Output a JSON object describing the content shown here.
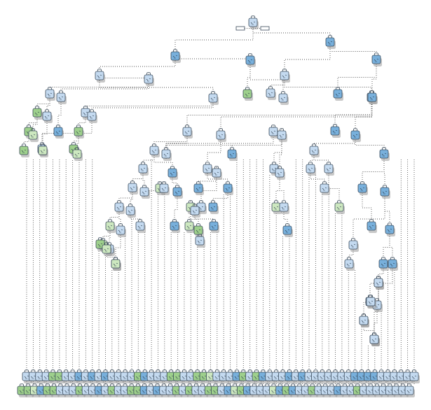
{
  "diagram": {
    "type": "decision-tree",
    "colors": {
      "blue": "#78b0dc",
      "light": "#c4daf0",
      "green": "#9ed08c",
      "palegreen": "#cde8c0",
      "link": "#555555"
    },
    "icon": "bag-node-icon",
    "nodes": [
      {
        "id": "n0",
        "c": "light"
      },
      {
        "id": "n1",
        "parent": "n0",
        "c": "blue"
      },
      {
        "id": "n2",
        "parent": "n0",
        "c": "blue"
      },
      {
        "id": "n3",
        "parent": "n1",
        "c": "light"
      },
      {
        "id": "n4",
        "parent": "n1",
        "c": "blue"
      },
      {
        "id": "n5",
        "parent": "n2",
        "c": "light"
      },
      {
        "id": "n6",
        "parent": "n2",
        "c": "blue"
      },
      {
        "id": "n7",
        "parent": "n3",
        "c": "light"
      },
      {
        "id": "n8",
        "parent": "n3",
        "c": "light"
      },
      {
        "id": "n9",
        "parent": "n4",
        "c": "green"
      },
      {
        "id": "n10",
        "parent": "n4",
        "c": "light"
      },
      {
        "id": "n11",
        "parent": "n5",
        "c": "light"
      },
      {
        "id": "n12",
        "parent": "n5",
        "c": "light"
      },
      {
        "id": "n13",
        "parent": "n6",
        "c": "blue"
      },
      {
        "id": "n14",
        "parent": "n6",
        "c": "blue"
      },
      {
        "id": "n15",
        "parent": "n7",
        "c": "light"
      },
      {
        "id": "n16",
        "parent": "n7",
        "c": "light"
      },
      {
        "id": "n17",
        "parent": "n8",
        "c": "light"
      },
      {
        "id": "n18",
        "parent": "n8",
        "c": "light"
      },
      {
        "id": "n19",
        "parent": "n12",
        "c": "light"
      },
      {
        "id": "n20",
        "parent": "n12",
        "c": "light"
      },
      {
        "id": "n21",
        "parent": "n15",
        "c": "green"
      },
      {
        "id": "n22",
        "parent": "n15",
        "c": "light"
      },
      {
        "id": "n23",
        "parent": "n16",
        "c": "blue"
      },
      {
        "id": "n24",
        "parent": "n17",
        "c": "green"
      },
      {
        "id": "n25",
        "parent": "n18",
        "c": "light"
      },
      {
        "id": "n26",
        "parent": "n19",
        "c": "light"
      },
      {
        "id": "n27",
        "parent": "n19",
        "c": "light"
      },
      {
        "id": "n28",
        "parent": "n20",
        "c": "blue"
      },
      {
        "id": "n29",
        "parent": "n20",
        "c": "light"
      },
      {
        "id": "n30",
        "parent": "n14",
        "c": "blue"
      },
      {
        "id": "n31",
        "parent": "n14",
        "c": "blue"
      },
      {
        "id": "n32",
        "parent": "n21",
        "c": "green"
      },
      {
        "id": "n33",
        "parent": "n21",
        "c": "palegreen"
      },
      {
        "id": "n34",
        "parent": "n22",
        "c": "palegreen"
      },
      {
        "id": "n35",
        "parent": "n24",
        "c": "green"
      },
      {
        "id": "n36",
        "parent": "n24",
        "c": "palegreen"
      },
      {
        "id": "n37",
        "parent": "n26",
        "c": "light"
      },
      {
        "id": "n38",
        "parent": "n26",
        "c": "blue"
      },
      {
        "id": "n39",
        "parent": "n27",
        "c": "light"
      },
      {
        "id": "n40",
        "parent": "n27",
        "c": "light"
      },
      {
        "id": "n41",
        "parent": "n29",
        "c": "light"
      },
      {
        "id": "n42",
        "parent": "n29",
        "c": "blue"
      },
      {
        "id": "n43",
        "parent": "n31",
        "c": "light"
      },
      {
        "id": "n44",
        "parent": "n31",
        "c": "blue"
      },
      {
        "id": "n45",
        "parent": "n32",
        "c": "green"
      },
      {
        "id": "n46",
        "parent": "n37",
        "c": "light"
      },
      {
        "id": "n47",
        "parent": "n37",
        "c": "light"
      },
      {
        "id": "n48",
        "parent": "n38",
        "c": "blue"
      },
      {
        "id": "n49",
        "parent": "n40",
        "c": "light"
      },
      {
        "id": "n50",
        "parent": "n40",
        "c": "light"
      },
      {
        "id": "n51",
        "parent": "n41",
        "c": "blue"
      },
      {
        "id": "n52",
        "parent": "n41",
        "c": "light"
      },
      {
        "id": "n53",
        "parent": "n42",
        "c": "blue"
      },
      {
        "id": "n54",
        "parent": "n43",
        "c": "light"
      },
      {
        "id": "n55",
        "parent": "n43",
        "c": "light"
      },
      {
        "id": "n56",
        "parent": "n44",
        "c": "blue"
      },
      {
        "id": "n57",
        "parent": "n44",
        "c": "blue"
      },
      {
        "id": "n58",
        "parent": "n46",
        "c": "light"
      },
      {
        "id": "n59",
        "parent": "n46",
        "c": "light"
      },
      {
        "id": "n60",
        "parent": "n47",
        "c": "palegreen"
      },
      {
        "id": "n61",
        "parent": "n47",
        "c": "light"
      },
      {
        "id": "n62",
        "parent": "n48",
        "c": "blue"
      },
      {
        "id": "n63",
        "parent": "n50",
        "c": "palegreen"
      },
      {
        "id": "n64",
        "parent": "n50",
        "c": "light"
      },
      {
        "id": "n65",
        "parent": "n52",
        "c": "palegreen"
      },
      {
        "id": "n66",
        "parent": "n52",
        "c": "light"
      },
      {
        "id": "n67",
        "parent": "n54",
        "c": "light"
      },
      {
        "id": "n68",
        "parent": "n55",
        "c": "palegreen"
      },
      {
        "id": "n69",
        "parent": "n56",
        "c": "blue"
      },
      {
        "id": "n70",
        "parent": "n57",
        "c": "light"
      },
      {
        "id": "n71",
        "parent": "n57",
        "c": "blue"
      },
      {
        "id": "n72",
        "parent": "n58",
        "c": "palegreen"
      },
      {
        "id": "n73",
        "parent": "n58",
        "c": "light"
      },
      {
        "id": "n74",
        "parent": "n59",
        "c": "light"
      },
      {
        "id": "n75",
        "parent": "n64",
        "c": "blue"
      },
      {
        "id": "n76",
        "parent": "n65",
        "c": "palegreen"
      },
      {
        "id": "n77",
        "parent": "n65",
        "c": "green"
      },
      {
        "id": "n78",
        "parent": "n66",
        "c": "blue"
      },
      {
        "id": "n79",
        "parent": "n70",
        "c": "light"
      },
      {
        "id": "n80",
        "parent": "n71",
        "c": "blue"
      },
      {
        "id": "n81",
        "parent": "n71",
        "c": "blue"
      },
      {
        "id": "n82",
        "parent": "n72",
        "c": "palegreen"
      },
      {
        "id": "n83",
        "parent": "n72",
        "c": "light"
      },
      {
        "id": "n84",
        "parent": "n73",
        "c": "palegreen"
      },
      {
        "id": "n85",
        "parent": "n77",
        "c": "light"
      },
      {
        "id": "n86",
        "parent": "n80",
        "c": "light"
      },
      {
        "id": "n87",
        "parent": "n81",
        "c": "light"
      },
      {
        "id": "n88",
        "parent": "n82",
        "c": "green"
      },
      {
        "id": "n89",
        "parent": "n82",
        "c": "palegreen"
      },
      {
        "id": "n90",
        "parent": "n86",
        "c": "light"
      },
      {
        "id": "n91",
        "parent": "n87",
        "c": "light"
      },
      {
        "id": "n92",
        "parent": "n89",
        "c": "palegreen"
      },
      {
        "id": "n93",
        "parent": "n91",
        "c": "light"
      },
      {
        "id": "n94",
        "parent": "n91",
        "c": "light"
      },
      {
        "id": "n95",
        "parent": "n93",
        "c": "light"
      },
      {
        "id": "n96",
        "parent": "n93",
        "c": "light"
      },
      {
        "id": "n97",
        "parent": "n95",
        "c": "light"
      },
      {
        "id": "n98",
        "parent": "n95",
        "c": "light"
      }
    ],
    "leaf_row_1": [
      "light",
      "light",
      "light",
      "light",
      "green",
      "green",
      "light",
      "light",
      "blue",
      "light",
      "blue",
      "light",
      "blue",
      "light",
      "light",
      "light",
      "light",
      "green",
      "blue",
      "light",
      "light",
      "light",
      "green",
      "green",
      "light",
      "light",
      "green",
      "green",
      "palegreen",
      "light",
      "light",
      "light",
      "blue",
      "green",
      "light",
      "green",
      "blue",
      "light",
      "light",
      "light",
      "blue",
      "light",
      "blue",
      "light",
      "light",
      "light",
      "light",
      "light",
      "light",
      "light",
      "blue",
      "blue",
      "blue",
      "blue",
      "light",
      "light",
      "light",
      "light",
      "light",
      "light"
    ],
    "leaf_row_2": [
      "green",
      "green",
      "palegreen",
      "blue",
      "green",
      "green",
      "light",
      "light",
      "light",
      "green",
      "light",
      "light",
      "blue",
      "light",
      "green",
      "light",
      "light",
      "green",
      "green",
      "blue",
      "light",
      "blue",
      "light",
      "light",
      "green",
      "light",
      "green",
      "light",
      "light",
      "green",
      "green",
      "light",
      "blue",
      "palegreen",
      "green",
      "blue",
      "light",
      "light",
      "light",
      "palegreen",
      "blue",
      "green",
      "blue",
      "light",
      "light",
      "green",
      "light",
      "light",
      "light",
      "blue",
      "light",
      "light",
      "green",
      "light",
      "light",
      "light",
      "light",
      "light",
      "light",
      "light",
      "light"
    ]
  }
}
